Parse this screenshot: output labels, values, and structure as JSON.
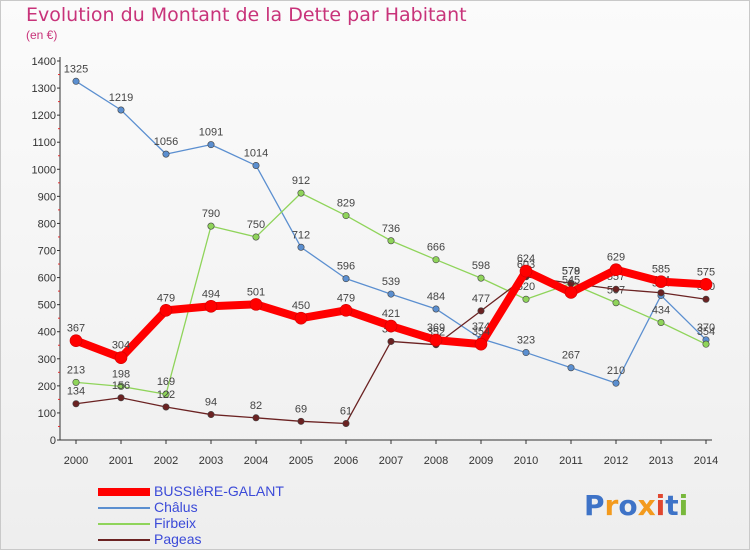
{
  "title": "Evolution du Montant de la Dette par Habitant",
  "subtitle": "(en €)",
  "logo": {
    "text": "Proxiti",
    "colors": [
      "#3e73c7",
      "#f39a1d",
      "#3e73c7",
      "#f39a1d",
      "#e0472f",
      "#3e73c7",
      "#78b83c"
    ]
  },
  "chart_data": {
    "type": "line",
    "title": "Evolution du Montant de la Dette par Habitant",
    "subtitle": "(en €)",
    "xlabel": "",
    "ylabel": "",
    "ylim": [
      0,
      1400
    ],
    "yticks": [
      0,
      100,
      200,
      300,
      400,
      500,
      600,
      700,
      800,
      900,
      1000,
      1100,
      1200,
      1300,
      1400
    ],
    "grid": false,
    "legend_position": "bottom-left",
    "x": [
      "2000",
      "2001",
      "2002",
      "2003",
      "2004",
      "2005",
      "2006",
      "2007",
      "2008",
      "2009",
      "2010",
      "2011",
      "2012",
      "2013",
      "2014"
    ],
    "series": [
      {
        "name": "Châlus",
        "color": "#5b8fd0",
        "values": [
          1325,
          1219,
          1056,
          1091,
          1014,
          712,
          596,
          539,
          484,
          374,
          323,
          267,
          210,
          534,
          370
        ]
      },
      {
        "name": "Firbeix",
        "color": "#8fd45a",
        "values": [
          213,
          198,
          169,
          790,
          750,
          912,
          829,
          736,
          666,
          598,
          520,
          578,
          507,
          434,
          354
        ]
      },
      {
        "name": "Pageas",
        "color": "#6b2222",
        "values": [
          134,
          156,
          122,
          94,
          82,
          69,
          61,
          364,
          352,
          477,
          603,
          579,
          557,
          544,
          520
        ]
      },
      {
        "name": "BUSSIèRE-GALANT",
        "color": "#ff0000",
        "values": [
          367,
          304,
          479,
          494,
          501,
          450,
          479,
          421,
          369,
          354,
          624,
          545,
          629,
          585,
          575
        ]
      }
    ],
    "legend": [
      "BUSSIèRE-GALANT",
      "Châlus",
      "Firbeix",
      "Pageas"
    ]
  }
}
